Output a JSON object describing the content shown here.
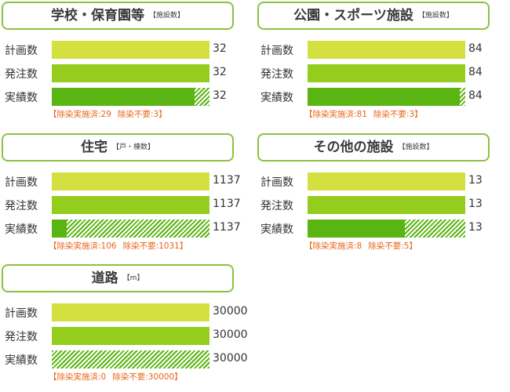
{
  "row_labels": [
    "計画数",
    "発注数",
    "実績数"
  ],
  "colors": {
    "plan": "#d4e040",
    "order": "#95cd1e",
    "done": "#5ab412",
    "note": "#e8661a",
    "border": "#8cc23e"
  },
  "chart_data": [
    {
      "type": "bar",
      "title": "学校・保育園等",
      "unit": "【施設数】",
      "categories": [
        "計画数",
        "発注数",
        "実績数"
      ],
      "values": [
        32,
        32,
        32
      ],
      "actual_breakdown": {
        "decontaminated": 29,
        "not_required": 3
      },
      "note": {
        "decontaminated_label": "【除染実施済:29",
        "not_required_label": "除染不要:3】"
      }
    },
    {
      "type": "bar",
      "title": "公園・スポーツ施設",
      "unit": "【施設数】",
      "categories": [
        "計画数",
        "発注数",
        "実績数"
      ],
      "values": [
        84,
        84,
        84
      ],
      "actual_breakdown": {
        "decontaminated": 81,
        "not_required": 3
      },
      "note": {
        "decontaminated_label": "【除染実施済:81",
        "not_required_label": "除染不要:3】"
      }
    },
    {
      "type": "bar",
      "title": "住宅",
      "unit": "【戸・棟数】",
      "categories": [
        "計画数",
        "発注数",
        "実績数"
      ],
      "values": [
        1137,
        1137,
        1137
      ],
      "actual_breakdown": {
        "decontaminated": 106,
        "not_required": 1031
      },
      "note": {
        "decontaminated_label": "【除染実施済:106",
        "not_required_label": "除染不要:1031】"
      }
    },
    {
      "type": "bar",
      "title": "その他の施設",
      "unit": "【施設数】",
      "categories": [
        "計画数",
        "発注数",
        "実績数"
      ],
      "values": [
        13,
        13,
        13
      ],
      "actual_breakdown": {
        "decontaminated": 8,
        "not_required": 5
      },
      "note": {
        "decontaminated_label": "【除染実施済:8",
        "not_required_label": "除染不要:5】"
      }
    },
    {
      "type": "bar",
      "title": "道路",
      "unit": "【m】",
      "categories": [
        "計画数",
        "発注数",
        "実績数"
      ],
      "values": [
        30000,
        30000,
        30000
      ],
      "actual_breakdown": {
        "decontaminated": 0,
        "not_required": 30000
      },
      "note": {
        "decontaminated_label": "【除染実施済:0",
        "not_required_label": "除染不要:30000】"
      }
    }
  ]
}
